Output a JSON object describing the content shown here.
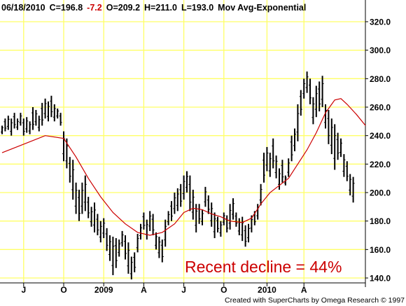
{
  "header": {
    "date": "06/18/2010",
    "close_label": "C=196.8",
    "change": "-7.2",
    "open_label": "O=209.2",
    "high_label": "H=211.0",
    "low_label": "L=193.0",
    "study": "Mov Avg-Exponential"
  },
  "annotation": "Recent decline = 44%",
  "credit": "Created with SuperCharts by Omega Research © 1997",
  "colors": {
    "background": "#ffffff",
    "grid": "#ffff66",
    "price_bars": "#000000",
    "moving_average": "#cc0000",
    "change_negative": "#cc0000",
    "annotation": "#cc0000"
  },
  "chart_data": {
    "type": "bar",
    "subtype": "weekly OHLC price bars with exponential moving average",
    "title": "",
    "xlabel": "",
    "ylabel": "",
    "ylim": [
      137,
      332
    ],
    "grid": true,
    "y_ticks": [
      140,
      160,
      180,
      200,
      220,
      240,
      260,
      280,
      300,
      320
    ],
    "y_tick_labels": [
      "140.0",
      "160.0",
      "180.0",
      "200.0",
      "220.0",
      "240.0",
      "260.0",
      "280.0",
      "300.0",
      "320.0"
    ],
    "x_ticks": [
      {
        "label": "J",
        "week": 7
      },
      {
        "label": "O",
        "week": 20
      },
      {
        "label": "2009",
        "week": 33
      },
      {
        "label": "A",
        "week": 46
      },
      {
        "label": "J",
        "week": 59
      },
      {
        "label": "O",
        "week": 72
      },
      {
        "label": "2010",
        "week": 86
      },
      {
        "label": "A",
        "week": 98
      }
    ],
    "series": [
      {
        "kind": "ohlc",
        "bars": [
          [
            241,
            247
          ],
          [
            243,
            252
          ],
          [
            244,
            254
          ],
          [
            240,
            252
          ],
          [
            245,
            256
          ],
          [
            244,
            252
          ],
          [
            247,
            256
          ],
          [
            240,
            252
          ],
          [
            242,
            253
          ],
          [
            241,
            250
          ],
          [
            244,
            260
          ],
          [
            247,
            258
          ],
          [
            243,
            254
          ],
          [
            247,
            263
          ],
          [
            252,
            266
          ],
          [
            250,
            264
          ],
          [
            253,
            268
          ],
          [
            250,
            262
          ],
          [
            252,
            259
          ],
          [
            247,
            256
          ],
          [
            222,
            243
          ],
          [
            217,
            238
          ],
          [
            207,
            225
          ],
          [
            195,
            223
          ],
          [
            185,
            207
          ],
          [
            180,
            202
          ],
          [
            185,
            207
          ],
          [
            187,
            212
          ],
          [
            182,
            197
          ],
          [
            176,
            190
          ],
          [
            172,
            193
          ],
          [
            170,
            185
          ],
          [
            165,
            180
          ],
          [
            168,
            182
          ],
          [
            159,
            175
          ],
          [
            152,
            170
          ],
          [
            142,
            169
          ],
          [
            147,
            168
          ],
          [
            155,
            167
          ],
          [
            162,
            173
          ],
          [
            153,
            170
          ],
          [
            143,
            165
          ],
          [
            139,
            155
          ],
          [
            144,
            158
          ],
          [
            158,
            171
          ],
          [
            167,
            178
          ],
          [
            174,
            186
          ],
          [
            167,
            181
          ],
          [
            173,
            187
          ],
          [
            170,
            185
          ],
          [
            160,
            172
          ],
          [
            154,
            169
          ],
          [
            151,
            167
          ],
          [
            162,
            181
          ],
          [
            177,
            187
          ],
          [
            180,
            194
          ],
          [
            185,
            200
          ],
          [
            187,
            203
          ],
          [
            190,
            206
          ],
          [
            195,
            212
          ],
          [
            200,
            215
          ],
          [
            187,
            212
          ],
          [
            181,
            202
          ],
          [
            172,
            192
          ],
          [
            178,
            192
          ],
          [
            177,
            188
          ],
          [
            190,
            204
          ],
          [
            185,
            198
          ],
          [
            176,
            193
          ],
          [
            168,
            186
          ],
          [
            172,
            183
          ],
          [
            169,
            180
          ],
          [
            177,
            186
          ],
          [
            172,
            184
          ],
          [
            174,
            192
          ],
          [
            181,
            196
          ],
          [
            176,
            186
          ],
          [
            170,
            182
          ],
          [
            166,
            183
          ],
          [
            162,
            177
          ],
          [
            165,
            178
          ],
          [
            172,
            184
          ],
          [
            177,
            187
          ],
          [
            181,
            192
          ],
          [
            191,
            206
          ],
          [
            207,
            228
          ],
          [
            215,
            232
          ],
          [
            211,
            228
          ],
          [
            217,
            238
          ],
          [
            210,
            226
          ],
          [
            202,
            217
          ],
          [
            207,
            223
          ],
          [
            205,
            212
          ],
          [
            211,
            224
          ],
          [
            222,
            240
          ],
          [
            229,
            245
          ],
          [
            236,
            262
          ],
          [
            254,
            272
          ],
          [
            266,
            280
          ],
          [
            270,
            285
          ],
          [
            262,
            280
          ],
          [
            248,
            267
          ],
          [
            253,
            275
          ],
          [
            257,
            278
          ],
          [
            260,
            282
          ],
          [
            245,
            262
          ],
          [
            234,
            258
          ],
          [
            227,
            252
          ],
          [
            216,
            248
          ],
          [
            223,
            242
          ],
          [
            225,
            238
          ],
          [
            211,
            227
          ],
          [
            208,
            222
          ],
          [
            198,
            213
          ],
          [
            193,
            211
          ]
        ]
      },
      {
        "name": "",
        "kind": "moving_average",
        "points": [
          [
            0,
            228
          ],
          [
            7,
            234
          ],
          [
            14,
            240
          ],
          [
            20,
            238
          ],
          [
            24,
            225
          ],
          [
            28,
            210
          ],
          [
            32,
            197
          ],
          [
            36,
            186
          ],
          [
            40,
            178
          ],
          [
            44,
            172
          ],
          [
            48,
            170
          ],
          [
            52,
            172
          ],
          [
            56,
            178
          ],
          [
            59,
            186
          ],
          [
            62,
            189
          ],
          [
            65,
            188
          ],
          [
            68,
            185
          ],
          [
            71,
            183
          ],
          [
            74,
            180
          ],
          [
            78,
            179
          ],
          [
            81,
            182
          ],
          [
            84,
            192
          ],
          [
            87,
            200
          ],
          [
            90,
            205
          ],
          [
            93,
            210
          ],
          [
            96,
            220
          ],
          [
            99,
            230
          ],
          [
            102,
            242
          ],
          [
            105,
            256
          ],
          [
            108,
            265
          ],
          [
            110,
            266
          ],
          [
            112,
            262
          ],
          [
            115,
            255
          ],
          [
            118,
            247
          ]
        ]
      }
    ]
  }
}
